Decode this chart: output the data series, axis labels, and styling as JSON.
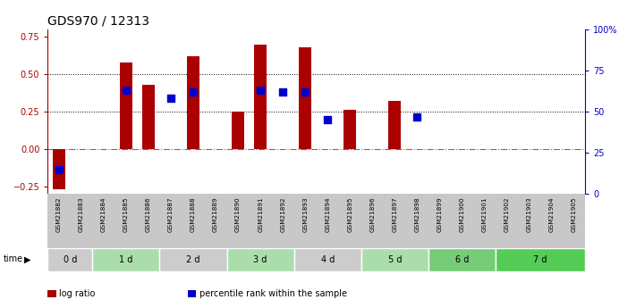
{
  "title": "GDS970 / 12313",
  "samples": [
    "GSM21882",
    "GSM21883",
    "GSM21884",
    "GSM21885",
    "GSM21886",
    "GSM21887",
    "GSM21888",
    "GSM21889",
    "GSM21890",
    "GSM21891",
    "GSM21892",
    "GSM21893",
    "GSM21894",
    "GSM21895",
    "GSM21896",
    "GSM21897",
    "GSM21898",
    "GSM21899",
    "GSM21900",
    "GSM21901",
    "GSM21902",
    "GSM21903",
    "GSM21904",
    "GSM21905"
  ],
  "log_ratio": [
    -0.27,
    0.0,
    0.0,
    0.58,
    0.43,
    0.0,
    0.62,
    0.0,
    0.25,
    0.7,
    0.0,
    0.68,
    0.0,
    0.26,
    0.0,
    0.32,
    0.0,
    0.0,
    0.0,
    0.0,
    0.0,
    0.0,
    0.0,
    0.0
  ],
  "percentile_rank": [
    15,
    0,
    0,
    63,
    0,
    58,
    62,
    0,
    0,
    63,
    62,
    62,
    45,
    0,
    0,
    0,
    47,
    0,
    0,
    0,
    0,
    0,
    0,
    0
  ],
  "time_groups": [
    {
      "label": "0 d",
      "start": 0,
      "end": 2,
      "color": "#cccccc"
    },
    {
      "label": "1 d",
      "start": 2,
      "end": 5,
      "color": "#aaddaa"
    },
    {
      "label": "2 d",
      "start": 5,
      "end": 8,
      "color": "#cccccc"
    },
    {
      "label": "3 d",
      "start": 8,
      "end": 11,
      "color": "#aaddaa"
    },
    {
      "label": "4 d",
      "start": 11,
      "end": 14,
      "color": "#cccccc"
    },
    {
      "label": "5 d",
      "start": 14,
      "end": 17,
      "color": "#aaddaa"
    },
    {
      "label": "6 d",
      "start": 17,
      "end": 20,
      "color": "#77cc77"
    },
    {
      "label": "7 d",
      "start": 20,
      "end": 24,
      "color": "#55cc55"
    }
  ],
  "bar_color": "#aa0000",
  "dot_color": "#0000cc",
  "ylim_left": [
    -0.3,
    0.8
  ],
  "ylim_right": [
    0,
    100
  ],
  "yticks_left": [
    -0.25,
    0.0,
    0.25,
    0.5,
    0.75
  ],
  "yticks_right": [
    0,
    25,
    50,
    75,
    100
  ],
  "ytick_right_labels": [
    "0",
    "25",
    "50",
    "75",
    "100%"
  ],
  "hlines_dotted": [
    0.25,
    0.5
  ],
  "hline_dash": 0.0,
  "bar_width": 0.55,
  "dot_size": 28,
  "bg_color": "#ffffff",
  "title_fontsize": 10,
  "tick_fontsize": 7,
  "samples_bg": "#c8c8c8",
  "legend_items": [
    {
      "color": "#aa0000",
      "label": "log ratio"
    },
    {
      "color": "#0000cc",
      "label": "percentile rank within the sample"
    }
  ]
}
